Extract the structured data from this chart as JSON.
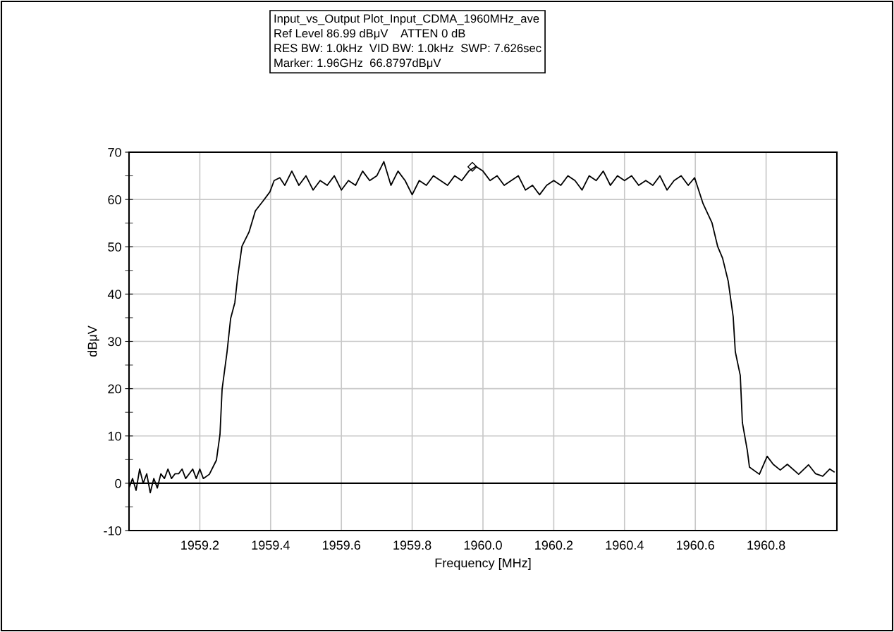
{
  "chart_data": {
    "type": "line",
    "xlabel": "Frequency [MHz]",
    "ylabel": "dBμV",
    "annotations": [
      "Input_vs_Output Plot_Input_CDMA_1960MHz_ave\nRef Level 86.99 dBμV    ATTEN 0 dB\nRES BW: 1.0kHz  VID BW: 1.0kHz  SWP: 7.626sec\nMarker: 1.96GHz  66.8797dBμV"
    ],
    "xlim": [
      1959.0,
      1961.0
    ],
    "ylim": [
      -10,
      70
    ],
    "xticks": [
      1959.2,
      1959.4,
      1959.6,
      1959.8,
      {
        "value": 1960.0,
        "label": "1960.0"
      },
      1960.2,
      1960.4,
      1960.6,
      1960.8
    ],
    "yticks": [
      -10,
      {
        "value": -5,
        "label": null
      },
      0,
      {
        "value": 5,
        "label": null
      },
      10,
      {
        "value": 15,
        "label": null
      },
      20,
      {
        "value": 25,
        "label": null
      },
      30,
      {
        "value": 35,
        "label": null
      },
      40,
      {
        "value": 45,
        "label": null
      },
      50,
      {
        "value": 55,
        "label": null
      },
      60,
      {
        "value": 65,
        "label": null
      },
      70
    ],
    "grid": true,
    "legend": false,
    "ref_lines": [
      {
        "axis": "y",
        "value": 0,
        "color": "#000000"
      }
    ],
    "series": [
      {
        "color": "#000000",
        "marker": "none",
        "line_style": "solid",
        "x": [
          1959.0,
          1959.01,
          1959.02,
          1959.03,
          1959.04,
          1959.05,
          1959.06,
          1959.07,
          1959.08,
          1959.09,
          1959.1,
          1959.11,
          1959.12,
          1959.13,
          1959.14,
          1959.15,
          1959.16,
          1959.17,
          1959.18,
          1959.19,
          1959.2,
          1959.21,
          1959.227,
          1959.247,
          1959.257,
          1959.263,
          1959.277,
          1959.287,
          1959.299,
          1959.307,
          1959.319,
          1959.339,
          1959.357,
          1959.378,
          1959.398,
          1959.41,
          1959.426,
          1959.44,
          1959.46,
          1959.48,
          1959.5,
          1959.52,
          1959.54,
          1959.56,
          1959.58,
          1959.6,
          1959.62,
          1959.64,
          1959.66,
          1959.68,
          1959.7,
          1959.72,
          1959.74,
          1959.76,
          1959.78,
          1959.8,
          1959.82,
          1959.84,
          1959.86,
          1959.88,
          1959.9,
          1959.92,
          1959.94,
          1959.96,
          1959.98,
          1960.0,
          1960.02,
          1960.04,
          1960.06,
          1960.08,
          1960.1,
          1960.12,
          1960.14,
          1960.16,
          1960.18,
          1960.2,
          1960.22,
          1960.24,
          1960.26,
          1960.28,
          1960.3,
          1960.32,
          1960.34,
          1960.36,
          1960.38,
          1960.4,
          1960.42,
          1960.44,
          1960.46,
          1960.48,
          1960.5,
          1960.52,
          1960.54,
          1960.56,
          1960.58,
          1960.598,
          1960.622,
          1960.647,
          1960.663,
          1960.677,
          1960.693,
          1960.707,
          1960.713,
          1960.727,
          1960.733,
          1960.747,
          1960.753,
          1960.781,
          1960.803,
          1960.82,
          1960.84,
          1960.86,
          1960.892,
          1960.92,
          1960.94,
          1960.96,
          1960.98,
          1960.992
        ],
        "values": [
          -1,
          1,
          -1.5,
          3,
          0,
          2,
          -2,
          1,
          -1,
          2,
          1,
          3,
          1,
          2,
          2,
          3,
          1,
          2,
          3,
          1,
          3,
          1,
          1.9,
          4.9,
          10.3,
          19.9,
          27.8,
          34.8,
          38.2,
          43.7,
          50.1,
          53.1,
          57.6,
          59.6,
          61.6,
          64,
          64.6,
          63,
          66,
          63,
          65,
          62,
          64,
          63,
          65,
          62,
          64,
          63,
          66,
          64,
          65,
          68,
          63,
          66,
          64,
          61,
          64,
          63,
          65,
          64,
          63,
          65,
          64,
          66,
          67,
          66,
          64,
          65,
          63,
          64,
          65,
          62,
          63,
          61,
          63,
          64,
          63,
          65,
          64,
          62,
          65,
          64,
          66,
          63,
          65,
          64,
          65,
          63,
          64,
          63,
          65,
          62,
          64,
          65,
          63,
          64.6,
          59.1,
          55.1,
          50.1,
          47.6,
          42.7,
          35.2,
          27.8,
          22.8,
          12.8,
          6.9,
          3.4,
          1.9,
          5.7,
          4,
          2.8,
          4,
          1.9,
          3.9,
          2,
          1.5,
          3,
          2.4
        ]
      },
      {
        "type": "scatter",
        "color": "#000000",
        "marker": "diamond",
        "x": [
          1959.97
        ],
        "values": [
          66.9
        ]
      }
    ]
  }
}
